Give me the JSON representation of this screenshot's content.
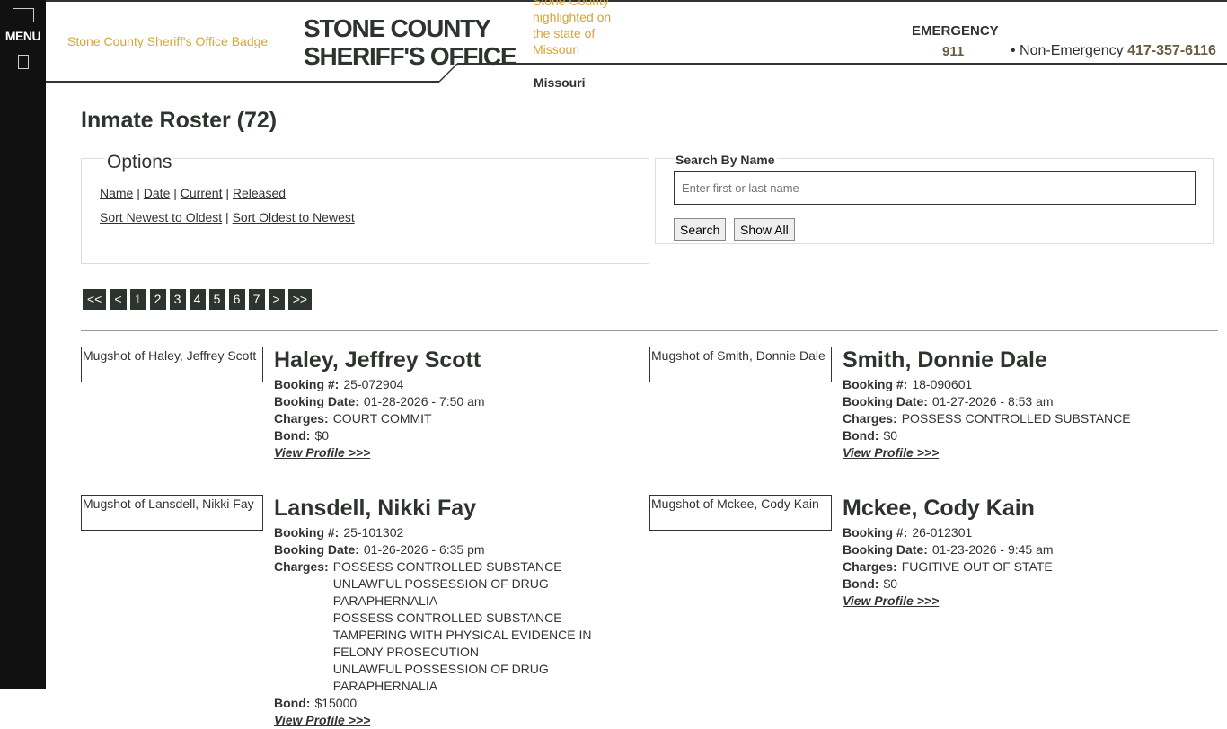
{
  "sidebar": {
    "menu_label": "MENU"
  },
  "header": {
    "badge_alt": "Stone County Sheriff's Office Badge",
    "title_line1": "STONE COUNTY",
    "title_line2": "SHERIFF'S OFFICE",
    "map_alt": "Stone County highlighted on the state of Missouri",
    "map_caption": "Missouri",
    "emergency_label": "EMERGENCY",
    "emergency_number": "911",
    "nonemergency_label": "• Non-Emergency",
    "nonemergency_number": "417-357-6116"
  },
  "page_title": "Inmate Roster (72)",
  "options": {
    "legend": "Options",
    "links": [
      "Name",
      "Date",
      "Current",
      "Released"
    ],
    "sort": [
      "Sort Newest to Oldest",
      "Sort Oldest to Newest"
    ]
  },
  "search": {
    "label": "Search By Name",
    "placeholder": "Enter first or last name",
    "search_button": "Search",
    "show_all_button": "Show All"
  },
  "pager": [
    "<<",
    "<",
    "1",
    "2",
    "3",
    "4",
    "5",
    "6",
    "7",
    ">",
    ">>"
  ],
  "labels": {
    "booking": "Booking #:",
    "date": "Booking Date:",
    "charges": "Charges:",
    "bond": "Bond:",
    "view": "View Profile >>>"
  },
  "inmates": [
    {
      "mug": "Mugshot of Haley, Jeffrey Scott",
      "name": "Haley, Jeffrey Scott",
      "booking": "25-072904",
      "date": "01-28-2026 - 7:50 am",
      "charges": [
        "COURT COMMIT"
      ],
      "bond": "$0"
    },
    {
      "mug": "Mugshot of Smith, Donnie Dale",
      "name": "Smith, Donnie Dale",
      "booking": "18-090601",
      "date": "01-27-2026 - 8:53 am",
      "charges": [
        "POSSESS CONTROLLED SUBSTANCE"
      ],
      "bond": "$0"
    },
    {
      "mug": "Mugshot of Lansdell, Nikki Fay",
      "name": "Lansdell, Nikki Fay",
      "booking": "25-101302",
      "date": "01-26-2026 - 6:35 pm",
      "charges": [
        "POSSESS CONTROLLED SUBSTANCE",
        "UNLAWFUL POSSESSION OF DRUG PARAPHERNALIA",
        "POSSESS CONTROLLED SUBSTANCE",
        "TAMPERING WITH PHYSICAL EVIDENCE IN FELONY PROSECUTION",
        "UNLAWFUL POSSESSION OF DRUG PARAPHERNALIA"
      ],
      "bond": "$15000"
    },
    {
      "mug": "Mugshot of Mckee, Cody Kain",
      "name": "Mckee, Cody Kain",
      "booking": "26-012301",
      "date": "01-23-2026 - 9:45 am",
      "charges": [
        "FUGITIVE OUT OF STATE"
      ],
      "bond": "$0"
    }
  ]
}
